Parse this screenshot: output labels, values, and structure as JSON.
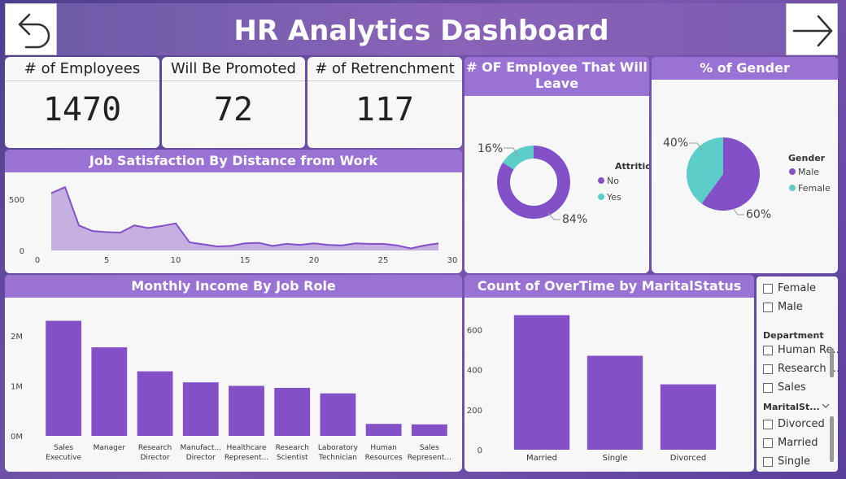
{
  "header": {
    "title": "HR Analytics Dashboard"
  },
  "nav": {
    "back_icon": "back-arrow-icon",
    "forward_icon": "forward-arrow-icon"
  },
  "kpis": [
    {
      "label": "# of Employees",
      "value": "1470"
    },
    {
      "label": "Will Be Promoted",
      "value": "72"
    },
    {
      "label": "# of Retrenchment",
      "value": "117"
    }
  ],
  "colors": {
    "purple": "#8450c8",
    "teal": "#5ccdc8",
    "light_purple": "#c6b0e2",
    "header": "#9a72d4"
  },
  "chart_data": [
    {
      "type": "pie",
      "title": "# OF Employee That Will Leave",
      "variant": "donut",
      "legend_title": "Attrition",
      "slices": [
        {
          "label": "No",
          "value": 84,
          "display": "84%",
          "color": "#8450c8"
        },
        {
          "label": "Yes",
          "value": 16,
          "display": "16%",
          "color": "#5ccdc8"
        }
      ]
    },
    {
      "type": "pie",
      "title": "% of Gender",
      "legend_title": "Gender",
      "slices": [
        {
          "label": "Male",
          "value": 60,
          "display": "60%",
          "color": "#8450c8"
        },
        {
          "label": "Female",
          "value": 40,
          "display": "40%",
          "color": "#5ccdc8"
        }
      ]
    },
    {
      "type": "area",
      "title": "Job Satisfaction By Distance from Work",
      "x": [
        1,
        2,
        3,
        4,
        5,
        6,
        7,
        8,
        9,
        10,
        11,
        12,
        13,
        14,
        15,
        16,
        17,
        18,
        19,
        20,
        21,
        22,
        23,
        24,
        25,
        26,
        27,
        28,
        29
      ],
      "values": [
        560,
        620,
        245,
        190,
        180,
        175,
        245,
        220,
        240,
        265,
        80,
        60,
        40,
        45,
        70,
        75,
        45,
        65,
        55,
        70,
        55,
        50,
        70,
        65,
        65,
        50,
        20,
        50,
        70
      ],
      "xticks": [
        "0",
        "5",
        "10",
        "15",
        "20",
        "25",
        "30"
      ],
      "yticks": [
        "0",
        "500"
      ],
      "xlim": [
        0,
        30
      ],
      "ylim": [
        0,
        700
      ]
    },
    {
      "type": "bar",
      "title": "Monthly Income By Job Role",
      "categories": [
        [
          "Sales",
          "Executive"
        ],
        [
          "Manager"
        ],
        [
          "Research",
          "Director"
        ],
        [
          "Manufact...",
          "Director"
        ],
        [
          "Healthcare",
          "Represent..."
        ],
        [
          "Research",
          "Scientist"
        ],
        [
          "Laboratory",
          "Technician"
        ],
        [
          "Human",
          "Resources"
        ],
        [
          "Sales",
          "Represent..."
        ]
      ],
      "values": [
        2300000,
        1770000,
        1290000,
        1070000,
        1000000,
        960000,
        850000,
        240000,
        230000
      ],
      "yticks": [
        "0M",
        "1M",
        "2M"
      ],
      "ylim": [
        0,
        2600000
      ]
    },
    {
      "type": "bar",
      "title": "Count of OverTime by MaritalStatus",
      "categories": [
        "Married",
        "Single",
        "Divorced"
      ],
      "values": [
        673,
        470,
        327
      ],
      "yticks": [
        "0",
        "200",
        "400",
        "600"
      ],
      "ylim": [
        0,
        720
      ]
    }
  ],
  "slicer": {
    "gender_options": [
      "Female",
      "Male"
    ],
    "department_label": "Department",
    "department_options": [
      "Human Re...",
      "Research ...",
      "Sales"
    ],
    "marital_label": "MaritalSt...",
    "marital_options": [
      "Divorced",
      "Married",
      "Single"
    ]
  }
}
